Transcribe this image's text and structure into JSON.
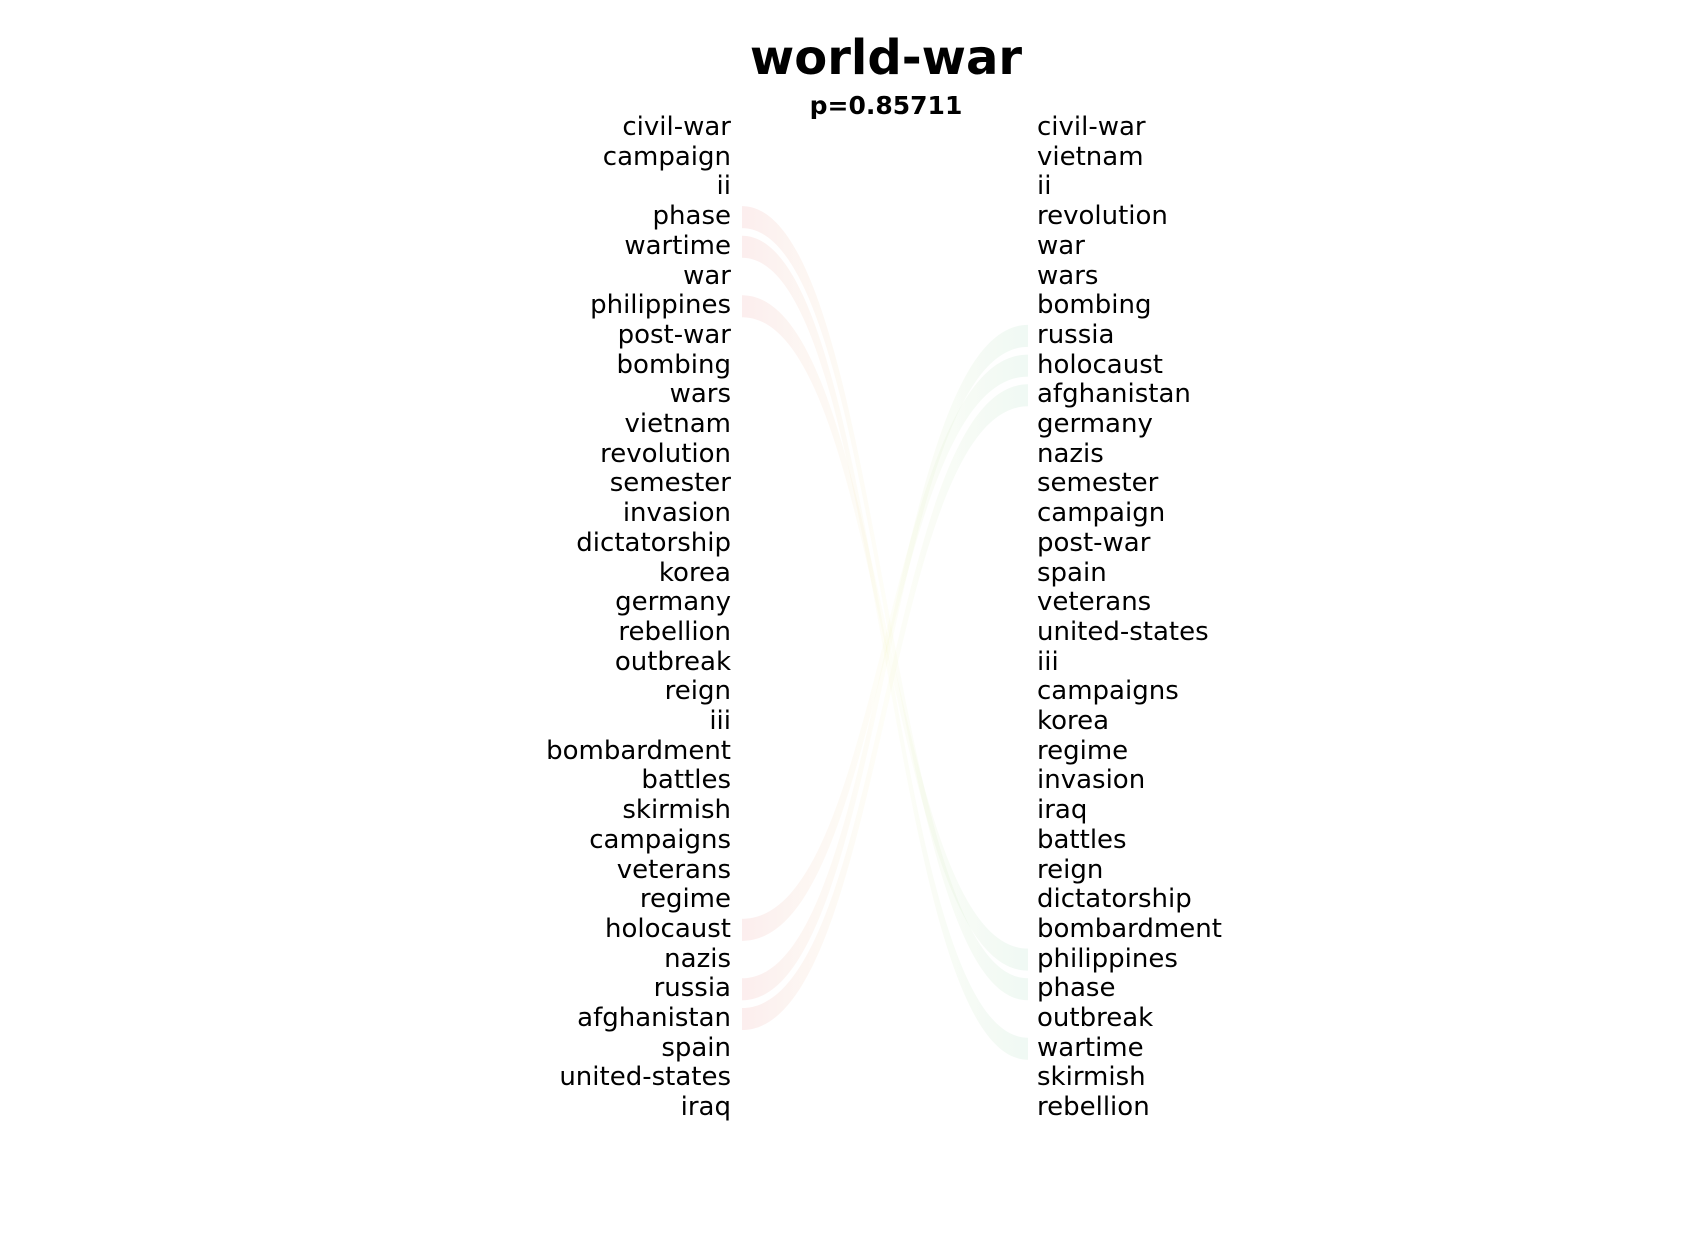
{
  "title": "world-war",
  "subtitle": "p=0.85711",
  "left_words": [
    "civil-war",
    "campaign",
    "ii",
    "phase",
    "wartime",
    "war",
    "philippines",
    "post-war",
    "bombing",
    "wars",
    "vietnam",
    "revolution",
    "semester",
    "invasion",
    "dictatorship",
    "korea",
    "germany",
    "rebellion",
    "outbreak",
    "reign",
    "iii",
    "bombardment",
    "battles",
    "skirmish",
    "campaigns",
    "veterans",
    "regime",
    "holocaust",
    "nazis",
    "russia",
    "afghanistan",
    "spain",
    "united-states",
    "iraq"
  ],
  "right_words": [
    "civil-war",
    "vietnam",
    "ii",
    "revolution",
    "war",
    "wars",
    "bombing",
    "russia",
    "holocaust",
    "afghanistan",
    "germany",
    "nazis",
    "semester",
    "campaign",
    "post-war",
    "spain",
    "veterans",
    "united-states",
    "iii",
    "campaigns",
    "korea",
    "regime",
    "invasion",
    "iraq",
    "battles",
    "reign",
    "dictatorship",
    "bombardment",
    "philippines",
    "phase",
    "outbreak",
    "wartime",
    "skirmish",
    "rebellion"
  ],
  "links": [
    {
      "from": "phase",
      "color": "#e05050"
    },
    {
      "from": "wartime",
      "color": "#e05050"
    },
    {
      "from": "philippines",
      "color": "#e05050"
    },
    {
      "from": "holocaust",
      "color": "#40b070"
    },
    {
      "from": "russia",
      "color": "#40b070"
    },
    {
      "from": "afghanistan",
      "color": "#40b070"
    }
  ]
}
